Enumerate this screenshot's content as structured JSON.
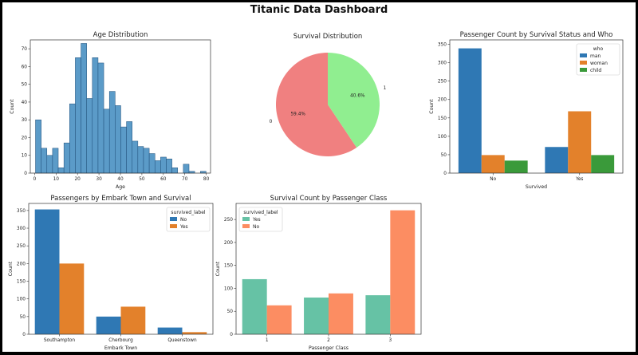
{
  "title": "Titanic Data Dashboard",
  "colors": {
    "blue": "#2f78b4",
    "orange": "#e3812b",
    "green": "#3a9a3a",
    "hist": "#5b9bc8",
    "pieNo": "#f08080",
    "pieYes": "#90ee90",
    "teal": "#66c2a5",
    "salmon": "#fc8d62"
  },
  "chart_data": [
    {
      "id": "age",
      "type": "bar",
      "title": "Age Distribution",
      "xlabel": "Age",
      "ylabel": "Count",
      "xlim": [
        -2,
        82
      ],
      "ylim": [
        0,
        75
      ],
      "xticks": [
        0,
        10,
        20,
        30,
        40,
        50,
        60,
        70,
        80
      ],
      "yticks": [
        0,
        10,
        20,
        30,
        40,
        50,
        60,
        70
      ],
      "bins": [
        {
          "x0": 0.42,
          "x1": 3.07,
          "count": 30
        },
        {
          "x0": 3.07,
          "x1": 5.72,
          "count": 14
        },
        {
          "x0": 5.72,
          "x1": 8.37,
          "count": 10
        },
        {
          "x0": 8.37,
          "x1": 11.02,
          "count": 14
        },
        {
          "x0": 11.02,
          "x1": 13.67,
          "count": 3
        },
        {
          "x0": 13.67,
          "x1": 16.32,
          "count": 17
        },
        {
          "x0": 16.32,
          "x1": 18.97,
          "count": 39
        },
        {
          "x0": 18.97,
          "x1": 21.62,
          "count": 65
        },
        {
          "x0": 21.62,
          "x1": 24.27,
          "count": 73
        },
        {
          "x0": 24.27,
          "x1": 26.92,
          "count": 42
        },
        {
          "x0": 26.92,
          "x1": 29.57,
          "count": 65
        },
        {
          "x0": 29.57,
          "x1": 32.22,
          "count": 62
        },
        {
          "x0": 32.22,
          "x1": 34.87,
          "count": 36
        },
        {
          "x0": 34.87,
          "x1": 37.52,
          "count": 46
        },
        {
          "x0": 37.52,
          "x1": 40.17,
          "count": 38
        },
        {
          "x0": 40.17,
          "x1": 42.82,
          "count": 26
        },
        {
          "x0": 42.82,
          "x1": 45.47,
          "count": 29
        },
        {
          "x0": 45.47,
          "x1": 48.12,
          "count": 18
        },
        {
          "x0": 48.12,
          "x1": 50.77,
          "count": 15
        },
        {
          "x0": 50.77,
          "x1": 53.42,
          "count": 14
        },
        {
          "x0": 53.42,
          "x1": 56.07,
          "count": 11
        },
        {
          "x0": 56.07,
          "x1": 58.72,
          "count": 7
        },
        {
          "x0": 58.72,
          "x1": 61.37,
          "count": 9
        },
        {
          "x0": 61.37,
          "x1": 64.02,
          "count": 8
        },
        {
          "x0": 64.02,
          "x1": 66.67,
          "count": 3
        },
        {
          "x0": 66.67,
          "x1": 69.32,
          "count": 0
        },
        {
          "x0": 69.32,
          "x1": 71.97,
          "count": 5
        },
        {
          "x0": 71.97,
          "x1": 74.62,
          "count": 1
        },
        {
          "x0": 74.62,
          "x1": 77.27,
          "count": 0
        },
        {
          "x0": 77.27,
          "x1": 79.92,
          "count": 1
        }
      ]
    },
    {
      "id": "survival",
      "type": "pie",
      "title": "Survival Distribution",
      "labels": [
        "0",
        "1"
      ],
      "values": [
        59.4,
        40.6
      ],
      "autopct": [
        "59.4%",
        "40.6%"
      ],
      "startangle": 90
    },
    {
      "id": "who",
      "type": "bar",
      "title": "Passenger Count by Survival Status and Who",
      "xlabel": "Survived",
      "ylabel": "Count",
      "categories": [
        "No",
        "Yes"
      ],
      "ylim": [
        0,
        362
      ],
      "yticks": [
        0,
        50,
        100,
        150,
        200,
        250,
        300,
        350
      ],
      "legend_title": "who",
      "legend_loc": "upper right",
      "series": [
        {
          "name": "man",
          "values": [
            339,
            71
          ]
        },
        {
          "name": "woman",
          "values": [
            49,
            168
          ]
        },
        {
          "name": "child",
          "values": [
            34,
            49
          ]
        }
      ]
    },
    {
      "id": "embark",
      "type": "bar",
      "title": "Passengers by Embark Town and Survival",
      "xlabel": "Embark Town",
      "ylabel": "Count",
      "categories": [
        "Southampton",
        "Cherbourg",
        "Queenstown"
      ],
      "ylim": [
        0,
        370
      ],
      "yticks": [
        0,
        50,
        100,
        150,
        200,
        250,
        300,
        350
      ],
      "legend_title": "survived_label",
      "legend_loc": "upper right",
      "series": [
        {
          "name": "No",
          "values": [
            353,
            50,
            19
          ]
        },
        {
          "name": "Yes",
          "values": [
            200,
            78,
            6
          ]
        }
      ]
    },
    {
      "id": "class",
      "type": "bar",
      "title": "Survival Count by Passenger Class",
      "xlabel": "Passenger Class",
      "ylabel": "Count",
      "categories": [
        "1",
        "2",
        "3"
      ],
      "ylim": [
        0,
        285
      ],
      "yticks": [
        0,
        50,
        100,
        150,
        200,
        250
      ],
      "legend_title": "survived_label",
      "legend_loc": "upper left",
      "series": [
        {
          "name": "Yes",
          "values": [
            120,
            80,
            85
          ]
        },
        {
          "name": "No",
          "values": [
            63,
            89,
            270
          ]
        }
      ]
    }
  ]
}
